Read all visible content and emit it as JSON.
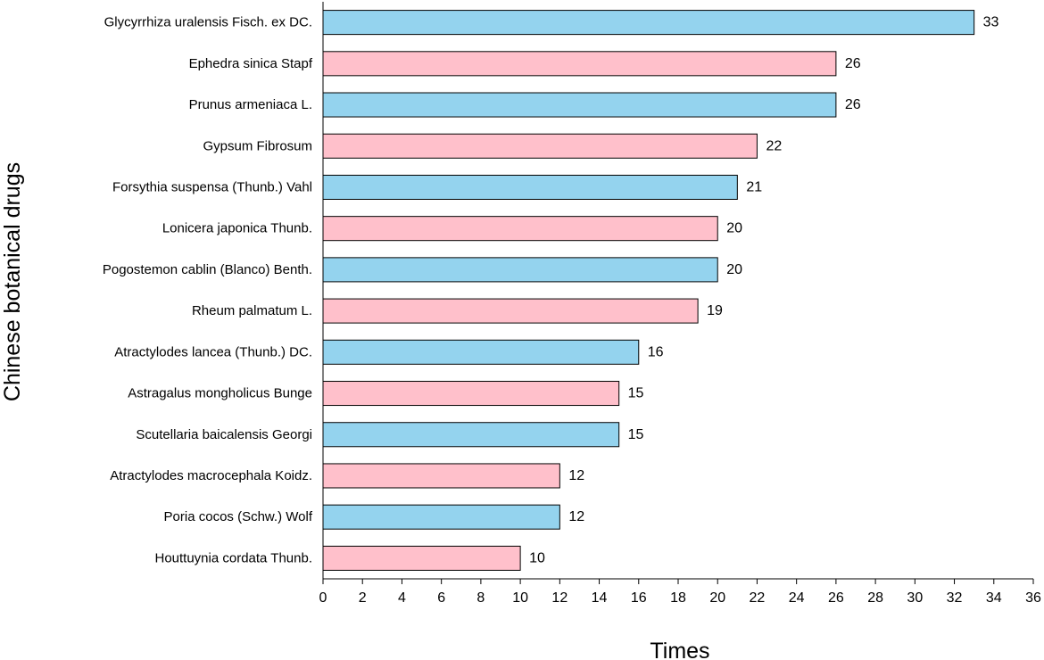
{
  "chart_data": {
    "type": "bar",
    "orientation": "horizontal",
    "categories": [
      "Glycyrrhiza uralensis Fisch. ex DC.",
      "Ephedra sinica Stapf",
      "Prunus armeniaca L.",
      "Gypsum Fibrosum",
      "Forsythia suspensa (Thunb.) Vahl",
      "Lonicera japonica Thunb.",
      "Pogostemon cablin (Blanco) Benth.",
      "Rheum palmatum L.",
      "Atractylodes lancea (Thunb.) DC.",
      "Astragalus mongholicus Bunge",
      "Scutellaria baicalensis Georgi",
      "Atractylodes macrocephala Koidz.",
      "Poria cocos (Schw.) Wolf",
      "Houttuynia cordata Thunb."
    ],
    "values": [
      33,
      26,
      26,
      22,
      21,
      20,
      20,
      19,
      16,
      15,
      15,
      12,
      12,
      10
    ],
    "data_labels": [
      "33",
      "26",
      "26",
      "22",
      "21",
      "20",
      "20",
      "19",
      "16",
      "15",
      "15",
      "12",
      "12",
      "10"
    ],
    "xlabel": "Times",
    "ylabel": "Chinese botanical drugs",
    "xlim": [
      0,
      36
    ],
    "x_ticks": [
      0,
      2,
      4,
      6,
      8,
      10,
      12,
      14,
      16,
      18,
      20,
      22,
      24,
      26,
      28,
      30,
      32,
      34,
      36
    ],
    "grid": false,
    "legend": "none",
    "bar_colors": [
      "#94d3ee",
      "#ffc0cb"
    ],
    "bar_outline": "#000000"
  }
}
